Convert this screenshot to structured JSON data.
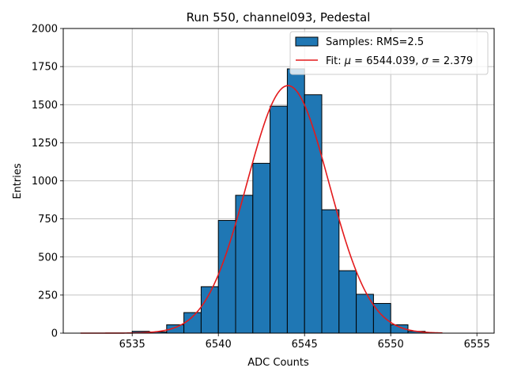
{
  "chart_data": {
    "type": "bar",
    "title": "Run 550, channel093, Pedestal",
    "xlabel": "ADC Counts",
    "ylabel": "Entries",
    "xlim": [
      6531,
      6556
    ],
    "ylim": [
      0,
      2000
    ],
    "xticks": [
      6535,
      6540,
      6545,
      6550,
      6555
    ],
    "yticks": [
      0,
      250,
      500,
      750,
      1000,
      1250,
      1500,
      1750,
      2000
    ],
    "grid": true,
    "legend_position": "top-right",
    "histogram": {
      "name": "Samples: RMS=2.5",
      "color": "#1f77b4",
      "edge_color": "#000000",
      "bins": [
        {
          "x0": 6532,
          "x1": 6533,
          "count": 0
        },
        {
          "x0": 6533,
          "x1": 6534,
          "count": 0
        },
        {
          "x0": 6534,
          "x1": 6535,
          "count": 0
        },
        {
          "x0": 6535,
          "x1": 6536,
          "count": 12
        },
        {
          "x0": 6536,
          "x1": 6537,
          "count": 8
        },
        {
          "x0": 6537,
          "x1": 6538,
          "count": 55
        },
        {
          "x0": 6538,
          "x1": 6539,
          "count": 135
        },
        {
          "x0": 6539,
          "x1": 6540,
          "count": 305
        },
        {
          "x0": 6540,
          "x1": 6541,
          "count": 740
        },
        {
          "x0": 6541,
          "x1": 6542,
          "count": 905
        },
        {
          "x0": 6542,
          "x1": 6543,
          "count": 1115
        },
        {
          "x0": 6543,
          "x1": 6544,
          "count": 1490
        },
        {
          "x0": 6544,
          "x1": 6545,
          "count": 1735
        },
        {
          "x0": 6545,
          "x1": 6546,
          "count": 1565
        },
        {
          "x0": 6546,
          "x1": 6547,
          "count": 810
        },
        {
          "x0": 6547,
          "x1": 6548,
          "count": 410
        },
        {
          "x0": 6548,
          "x1": 6549,
          "count": 255
        },
        {
          "x0": 6549,
          "x1": 6550,
          "count": 195
        },
        {
          "x0": 6550,
          "x1": 6551,
          "count": 55
        },
        {
          "x0": 6551,
          "x1": 6552,
          "count": 12
        },
        {
          "x0": 6552,
          "x1": 6553,
          "count": 0
        }
      ]
    },
    "fit": {
      "name": "Fit: μ = 6544.039, σ = 2.379",
      "color": "#e31a1c",
      "mu": 6544.039,
      "sigma": 2.379,
      "peak": 1625,
      "x_range": [
        6532,
        6553
      ]
    }
  }
}
